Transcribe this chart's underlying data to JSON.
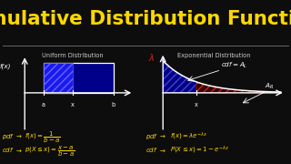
{
  "title": "Cumulative Distribution Functions",
  "title_color": "#FFD700",
  "background_color": "#0d0d0d",
  "left_subtitle": "Uniform Distribution",
  "right_subtitle": "Exponential Distribution",
  "subtitle_color": "#cccccc",
  "formula_color": "#FFD700",
  "white": "#ffffff",
  "red": "#cc0000",
  "blue_fill": "#00008B",
  "blue_hatch": "#3333cc",
  "red_hatch": "#aa0000",
  "lambda_color": "#dd2222",
  "separator_color": "#666666",
  "title_fontsize": 15.5,
  "subtitle_fontsize": 4.8,
  "label_fontsize": 5.2,
  "formula_fontsize": 5.0
}
